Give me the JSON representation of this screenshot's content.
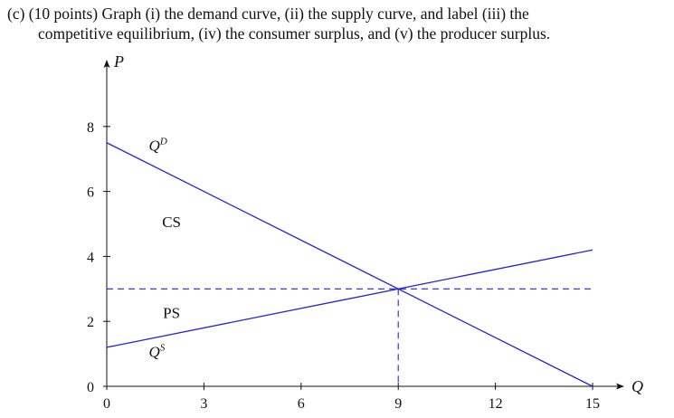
{
  "question": {
    "line1": "(c)  (10 points) Graph (i) the demand curve, (ii) the supply curve, and label (iii) the",
    "line2": "competitive equilibrium, (iv) the consumer surplus, and (v) the producer surplus."
  },
  "chart_data": {
    "type": "line",
    "xlabel": "Q",
    "ylabel": "P",
    "xlim": [
      0,
      16
    ],
    "ylim": [
      0,
      9
    ],
    "x_ticks": [
      "0",
      "3",
      "6",
      "9",
      "12",
      "15"
    ],
    "y_ticks": [
      "0",
      "2",
      "4",
      "6",
      "8"
    ],
    "x_tick_values": [
      0,
      3,
      6,
      9,
      12,
      15
    ],
    "y_tick_values": [
      0,
      2,
      4,
      6,
      8
    ],
    "series": [
      {
        "name": "Q^D",
        "color": "#2222dd",
        "x": [
          0,
          15
        ],
        "y": [
          7.5,
          0
        ]
      },
      {
        "name": "Q^S",
        "color": "#2222dd",
        "x": [
          0,
          15
        ],
        "y": [
          1.2,
          4.2
        ]
      }
    ],
    "equilibrium": {
      "q": 9,
      "p": 3
    },
    "reference_lines": {
      "color": "#2222dd",
      "style": "dashed"
    },
    "annotations": {
      "demand_label": {
        "base": "Q",
        "sup": "D",
        "x": 1.3,
        "y": 7.25
      },
      "supply_label": {
        "base": "Q",
        "sup": "S",
        "x": 1.3,
        "y": 0.9
      },
      "cs_label": {
        "text": "CS",
        "x": 2.0,
        "y": 4.9
      },
      "ps_label": {
        "text": "PS",
        "x": 2.0,
        "y": 2.1
      }
    },
    "grid": false,
    "legend": "none"
  }
}
